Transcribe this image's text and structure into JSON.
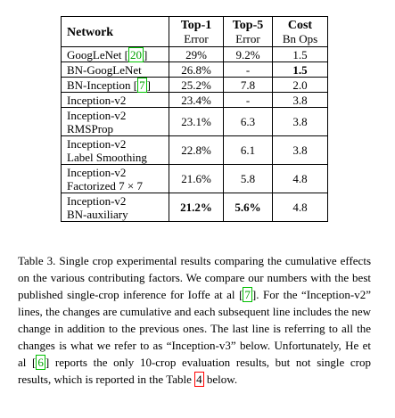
{
  "table": {
    "headers": {
      "network": "Network",
      "top1": [
        "Top-1",
        "Error"
      ],
      "top5": [
        "Top-5",
        "Error"
      ],
      "cost": [
        "Cost",
        "Bn Ops"
      ]
    },
    "rows": [
      {
        "name": [
          "GoogLeNet"
        ],
        "ref": "20",
        "top1": "29%",
        "top5": "9.2%",
        "cost": "1.5",
        "bold": []
      },
      {
        "name": [
          "BN-GoogLeNet"
        ],
        "ref": "",
        "top1": "26.8%",
        "top5": "-",
        "cost": "1.5",
        "bold": [
          "cost"
        ]
      },
      {
        "name": [
          "BN-Inception"
        ],
        "ref": "7",
        "top1": "25.2%",
        "top5": "7.8",
        "cost": "2.0",
        "bold": []
      },
      {
        "name": [
          "Inception-v2"
        ],
        "ref": "",
        "top1": "23.4%",
        "top5": "-",
        "cost": "3.8",
        "bold": []
      },
      {
        "name": [
          "Inception-v2",
          "RMSProp"
        ],
        "ref": "",
        "top1": "23.1%",
        "top5": "6.3",
        "cost": "3.8",
        "bold": []
      },
      {
        "name": [
          "Inception-v2",
          "Label Smoothing"
        ],
        "ref": "",
        "top1": "22.8%",
        "top5": "6.1",
        "cost": "3.8",
        "bold": []
      },
      {
        "name": [
          "Inception-v2",
          "Factorized 7 × 7"
        ],
        "ref": "",
        "top1": "21.6%",
        "top5": "5.8",
        "cost": "4.8",
        "bold": []
      },
      {
        "name": [
          "Inception-v2",
          "BN-auxiliary"
        ],
        "ref": "",
        "top1": "21.2%",
        "top5": "5.6%",
        "cost": "4.8",
        "bold": [
          "top1",
          "top5"
        ]
      }
    ]
  },
  "caption": {
    "label": "Table 3.",
    "s1": " Single crop experimental results comparing the cumulative effects on the various contributing factors. We compare our numbers with the best published single-crop inference for Ioffe at al ",
    "ref1": "7",
    "s2": ". For the “Inception-v2” lines, the changes are cumulative and each subsequent line includes the new change in addition to the previous ones. The last line is referring to all the changes is what we refer to as “Inception-v3” below. Unfortunately, He et al ",
    "ref2": "6",
    "s3": " reports the only 10-crop evaluation results, but not single crop results, which is reported in the Table ",
    "ref3": "4",
    "s4": " below."
  }
}
